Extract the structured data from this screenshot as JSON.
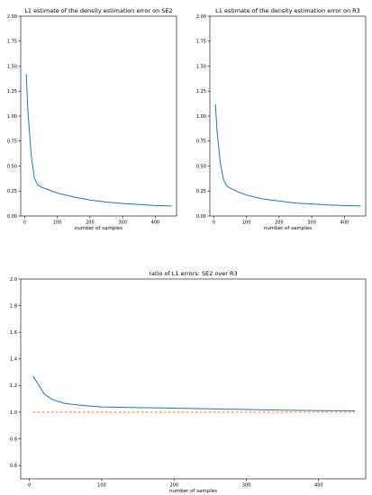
{
  "chart_data": [
    {
      "type": "line",
      "title": "L1 estimate of the density estimation error on SE2",
      "xlabel": "number of samples",
      "ylabel": "",
      "xlim": [
        -12,
        465
      ],
      "ylim": [
        0,
        2.0
      ],
      "xticks": [
        0,
        100,
        200,
        300,
        400
      ],
      "yticks": [
        0.0,
        0.25,
        0.5,
        0.75,
        1.0,
        1.25,
        1.5,
        1.75,
        2.0
      ],
      "ytick_labels": [
        "0.00",
        "0.25",
        "0.50",
        "0.75",
        "1.00",
        "1.25",
        "1.50",
        "1.75",
        "2.00"
      ],
      "grid": false,
      "series": [
        {
          "color": "#1f77b4",
          "x": [
            5,
            10,
            20,
            30,
            40,
            50,
            75,
            100,
            150,
            200,
            250,
            300,
            350,
            400,
            450
          ],
          "y": [
            1.42,
            1.05,
            0.61,
            0.38,
            0.31,
            0.29,
            0.26,
            0.23,
            0.19,
            0.16,
            0.14,
            0.125,
            0.115,
            0.105,
            0.1
          ]
        }
      ]
    },
    {
      "type": "line",
      "title": "L1 estimate of the density estimation error on R3",
      "xlabel": "number of samples",
      "ylabel": "",
      "xlim": [
        -12,
        465
      ],
      "ylim": [
        0,
        2.0
      ],
      "xticks": [
        0,
        100,
        200,
        300,
        400
      ],
      "yticks": [
        0.0,
        0.25,
        0.5,
        0.75,
        1.0,
        1.25,
        1.5,
        1.75,
        2.0
      ],
      "ytick_labels": [
        "0.00",
        "0.25",
        "0.50",
        "0.75",
        "1.00",
        "1.25",
        "1.50",
        "1.75",
        "2.00"
      ],
      "grid": false,
      "series": [
        {
          "color": "#1f77b4",
          "x": [
            5,
            10,
            20,
            30,
            40,
            50,
            75,
            100,
            150,
            200,
            250,
            300,
            350,
            400,
            450
          ],
          "y": [
            1.12,
            0.85,
            0.53,
            0.36,
            0.3,
            0.28,
            0.24,
            0.21,
            0.17,
            0.15,
            0.13,
            0.12,
            0.11,
            0.105,
            0.1
          ]
        }
      ]
    },
    {
      "type": "line",
      "title": "ratio of L1 errors: SE2 over R3",
      "xlabel": "number of samples",
      "ylabel": "",
      "xlim": [
        -12,
        465
      ],
      "ylim": [
        0.5,
        2.0
      ],
      "xticks": [
        0,
        100,
        200,
        300,
        400
      ],
      "yticks": [
        0.6,
        0.8,
        1.0,
        1.2,
        1.4,
        1.6,
        1.8,
        2.0
      ],
      "ytick_labels": [
        "0.6",
        "0.8",
        "1.0",
        "1.2",
        "1.4",
        "1.6",
        "1.8",
        "2.0"
      ],
      "grid": false,
      "series": [
        {
          "color": "#1f77b4",
          "x": [
            5,
            10,
            20,
            30,
            40,
            50,
            75,
            100,
            150,
            200,
            250,
            300,
            350,
            400,
            450
          ],
          "y": [
            1.27,
            1.23,
            1.14,
            1.1,
            1.08,
            1.065,
            1.05,
            1.04,
            1.035,
            1.03,
            1.025,
            1.02,
            1.015,
            1.012,
            1.01
          ]
        },
        {
          "color": "#ff7f0e",
          "dashed": true,
          "x": [
            5,
            450
          ],
          "y": [
            1.0,
            1.0
          ]
        }
      ]
    }
  ]
}
